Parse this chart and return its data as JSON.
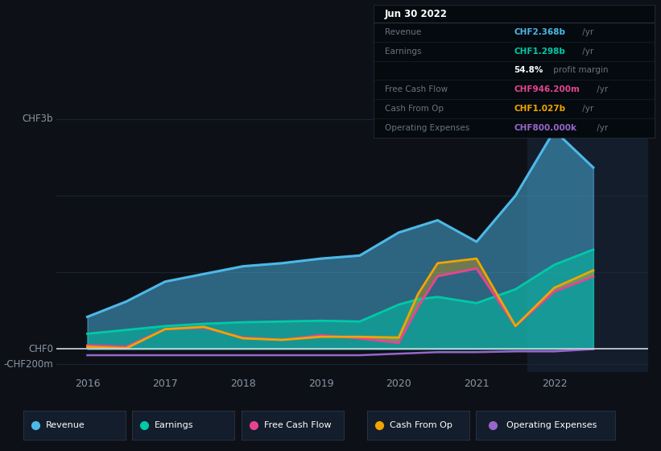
{
  "bg_color": "#0d1117",
  "plot_bg_color": "#0d1117",
  "highlight_bg": "#141d2b",
  "grid_color": "#1e2a3a",
  "text_color": "#8b95a5",
  "years": [
    2016,
    2016.5,
    2017,
    2017.5,
    2018,
    2018.5,
    2019,
    2019.5,
    2020,
    2020.25,
    2020.5,
    2021,
    2021.5,
    2022,
    2022.5
  ],
  "revenue": [
    0.42,
    0.62,
    0.88,
    0.98,
    1.08,
    1.12,
    1.18,
    1.22,
    1.52,
    1.6,
    1.68,
    1.4,
    2.0,
    2.85,
    2.368
  ],
  "earnings": [
    0.2,
    0.25,
    0.3,
    0.33,
    0.35,
    0.36,
    0.37,
    0.36,
    0.58,
    0.65,
    0.68,
    0.6,
    0.78,
    1.1,
    1.298
  ],
  "free_cash_flow": [
    0.05,
    0.03,
    0.26,
    0.28,
    0.15,
    0.12,
    0.18,
    0.14,
    0.08,
    0.55,
    0.95,
    1.05,
    0.3,
    0.75,
    0.9462
  ],
  "cash_from_op": [
    0.03,
    0.01,
    0.26,
    0.29,
    0.14,
    0.12,
    0.16,
    0.16,
    0.15,
    0.72,
    1.12,
    1.18,
    0.3,
    0.8,
    1.027
  ],
  "operating_expenses": [
    -0.08,
    -0.08,
    -0.08,
    -0.08,
    -0.08,
    -0.08,
    -0.08,
    -0.08,
    -0.06,
    -0.05,
    -0.04,
    -0.04,
    -0.03,
    -0.03,
    -0.0008
  ],
  "revenue_color": "#4db8e8",
  "earnings_color": "#00c9a7",
  "fcf_color": "#e84393",
  "cashop_color": "#f0a500",
  "opex_color": "#9966cc",
  "ylim_min": -0.3,
  "ylim_max": 3.2,
  "xlim_min": 2015.6,
  "xlim_max": 2023.2,
  "xticks": [
    2016,
    2017,
    2018,
    2019,
    2020,
    2021,
    2022
  ],
  "highlight_x_start": 2021.65,
  "highlight_x_end": 2023.2,
  "legend_items": [
    {
      "label": "Revenue",
      "color": "#4db8e8"
    },
    {
      "label": "Earnings",
      "color": "#00c9a7"
    },
    {
      "label": "Free Cash Flow",
      "color": "#e84393"
    },
    {
      "label": "Cash From Op",
      "color": "#f0a500"
    },
    {
      "label": "Operating Expenses",
      "color": "#9966cc"
    }
  ],
  "info_box": {
    "title": "Jun 30 2022",
    "rows": [
      {
        "label": "Revenue",
        "value": "CHF2.368b",
        "unit": " /yr",
        "color": "#4db8e8"
      },
      {
        "label": "Earnings",
        "value": "CHF1.298b",
        "unit": " /yr",
        "color": "#00c9a7"
      },
      {
        "label": "",
        "value": "54.8%",
        "unit": " profit margin",
        "color": "#ffffff"
      },
      {
        "label": "Free Cash Flow",
        "value": "CHF946.200m",
        "unit": " /yr",
        "color": "#e84393"
      },
      {
        "label": "Cash From Op",
        "value": "CHF1.027b",
        "unit": " /yr",
        "color": "#f0a500"
      },
      {
        "label": "Operating Expenses",
        "value": "CHF800.000k",
        "unit": " /yr",
        "color": "#9966cc"
      }
    ]
  },
  "ytick_labels_left": [
    {
      "value": 3.0,
      "label": "CHF3b"
    },
    {
      "value": 0.0,
      "label": "CHF0"
    },
    {
      "value": -0.2,
      "label": "-CHF200m"
    }
  ]
}
